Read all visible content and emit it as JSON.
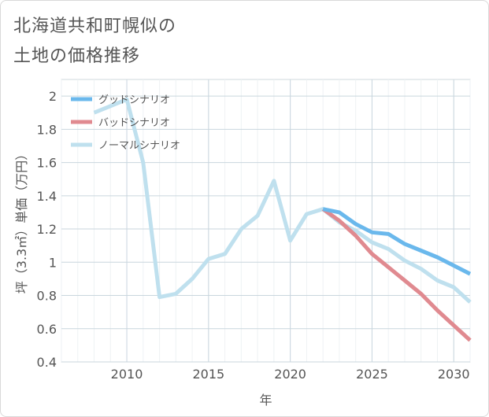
{
  "title_line1": "北海道共和町幌似の",
  "title_line2": "土地の価格推移",
  "chart_data": {
    "type": "line",
    "xlabel": "年",
    "ylabel": "坪（3.3㎡）単価（万円）",
    "xlim": [
      2006,
      2031
    ],
    "ylim": [
      0.4,
      2.1
    ],
    "x_ticks": [
      2010,
      2015,
      2020,
      2025,
      2030
    ],
    "y_ticks": [
      0.4,
      0.6,
      0.8,
      1,
      1.2,
      1.4,
      1.6,
      1.8,
      2
    ],
    "y_tick_labels": [
      "0.4",
      "0.6",
      "0.8",
      "1",
      "1.2",
      "1.4",
      "1.6",
      "1.8",
      "2"
    ],
    "grid": true,
    "legend_position": "top-left",
    "series": [
      {
        "name": "グッドシナリオ",
        "color": "#6ab8ec",
        "x": [
          2022,
          2023,
          2024,
          2025,
          2026,
          2027,
          2028,
          2029,
          2030,
          2031
        ],
        "y": [
          1.32,
          1.3,
          1.23,
          1.18,
          1.17,
          1.11,
          1.07,
          1.03,
          0.98,
          0.93
        ]
      },
      {
        "name": "バッドシナリオ",
        "color": "#e08a90",
        "x": [
          2022,
          2023,
          2024,
          2025,
          2026,
          2027,
          2028,
          2029,
          2030,
          2031
        ],
        "y": [
          1.32,
          1.25,
          1.16,
          1.05,
          0.97,
          0.89,
          0.81,
          0.71,
          0.62,
          0.53
        ]
      },
      {
        "name": "ノーマルシナリオ",
        "color": "#bfe0ee",
        "x": [
          2008,
          2009,
          2010,
          2011,
          2012,
          2013,
          2014,
          2015,
          2016,
          2017,
          2018,
          2019,
          2020,
          2021,
          2022,
          2023,
          2024,
          2025,
          2026,
          2027,
          2028,
          2029,
          2030,
          2031
        ],
        "y": [
          1.9,
          1.94,
          1.98,
          1.6,
          0.79,
          0.81,
          0.9,
          1.02,
          1.05,
          1.2,
          1.28,
          1.49,
          1.13,
          1.29,
          1.32,
          1.24,
          1.19,
          1.12,
          1.08,
          1.01,
          0.96,
          0.89,
          0.85,
          0.76
        ]
      }
    ]
  }
}
